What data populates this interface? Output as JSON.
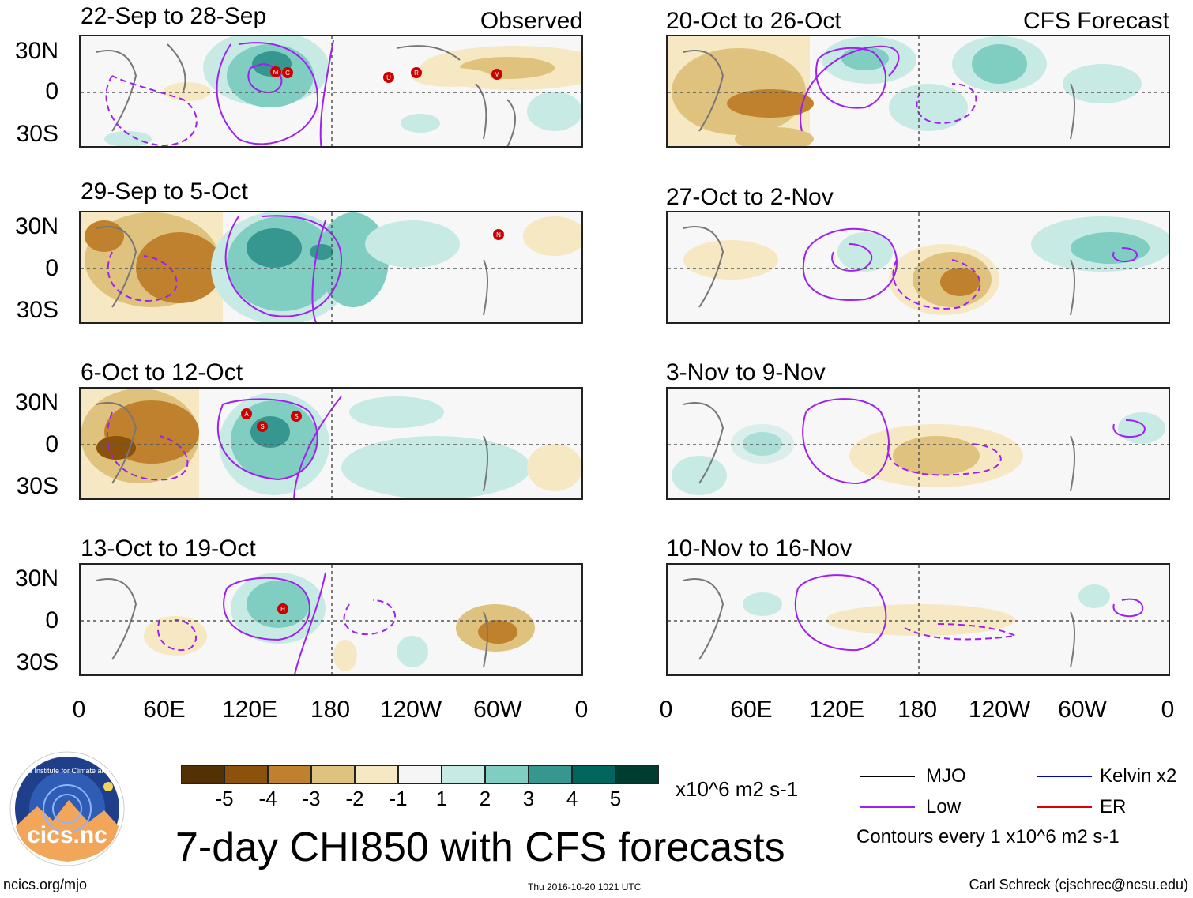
{
  "title": "7-day CHI850 with CFS forecasts",
  "site": "ncics.org/mjo",
  "timestamp": "Thu 2016-10-20 1021 UTC",
  "author": "Carl Schreck (cjschrec@ncsu.edu)",
  "logo": {
    "ring_text": "Cooperative Institute for Climate and Satellites",
    "name": "cics.nc"
  },
  "labels": {
    "observed": "Observed",
    "forecast": "CFS Forecast"
  },
  "lat_labels": [
    "30N",
    "0",
    "30S"
  ],
  "lon_labels": [
    "0",
    "60E",
    "120E",
    "180",
    "120W",
    "60W",
    "0"
  ],
  "panels": {
    "observed": [
      {
        "period": "22-Sep to 28-Sep",
        "storms": [
          "U",
          "R",
          "M",
          "M",
          "C",
          "M"
        ]
      },
      {
        "period": "29-Sep to 5-Oct",
        "storms": [
          "N"
        ]
      },
      {
        "period": "6-Oct to 12-Oct",
        "storms": [
          "A",
          "S",
          "S"
        ]
      },
      {
        "period": "13-Oct to 19-Oct",
        "storms": [
          "H"
        ]
      }
    ],
    "forecast": [
      {
        "period": "20-Oct to 26-Oct"
      },
      {
        "period": "27-Oct to 2-Nov"
      },
      {
        "period": "3-Nov to 9-Nov"
      },
      {
        "period": "10-Nov to 16-Nov"
      }
    ]
  },
  "colorbar": {
    "colors": [
      "#543005",
      "#8c510a",
      "#bf812d",
      "#dfc27d",
      "#f6e8c3",
      "#f5f5f5",
      "#c7eae5",
      "#80cdc1",
      "#35978f",
      "#01665e",
      "#003c30"
    ],
    "ticks": [
      "-5",
      "-4",
      "-3",
      "-2",
      "-1",
      "1",
      "2",
      "3",
      "4",
      "5"
    ],
    "units": "x10^6 m2 s-1"
  },
  "legend": {
    "items": [
      {
        "label": "MJO",
        "color": "#000000"
      },
      {
        "label": "Low",
        "color": "#a020f0"
      },
      {
        "label": "Kelvin x2",
        "color": "#0000cd"
      },
      {
        "label": "ER",
        "color": "#dd0000"
      }
    ],
    "note": "Contours every 1 x10^6 m2 s-1"
  }
}
